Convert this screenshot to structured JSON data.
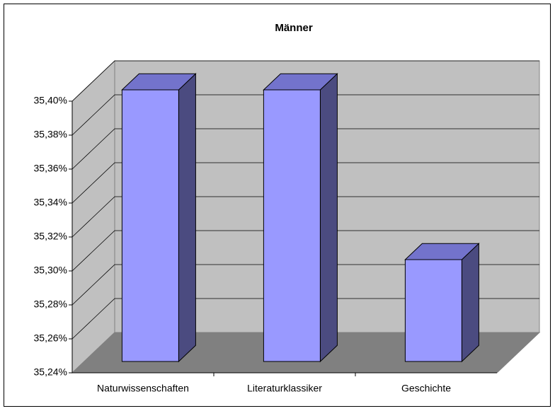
{
  "chart_data": {
    "type": "bar3d",
    "title": "Männer",
    "categories": [
      "Naturwissenschaften",
      "Literaturklassiker",
      "Geschichte"
    ],
    "values": [
      35.4,
      35.4,
      35.3
    ],
    "color": "#9999ff",
    "ylim": [
      35.24,
      35.4
    ],
    "yticks": [
      {
        "value": 35.24,
        "label": "35,24%"
      },
      {
        "value": 35.26,
        "label": "35,26%"
      },
      {
        "value": 35.28,
        "label": "35,28%"
      },
      {
        "value": 35.3,
        "label": "35,30%"
      },
      {
        "value": 35.32,
        "label": "35,32%"
      },
      {
        "value": 35.34,
        "label": "35,34%"
      },
      {
        "value": 35.36,
        "label": "35,36%"
      },
      {
        "value": 35.38,
        "label": "35,38%"
      },
      {
        "value": 35.4,
        "label": "35,40%"
      }
    ],
    "grid": true
  }
}
